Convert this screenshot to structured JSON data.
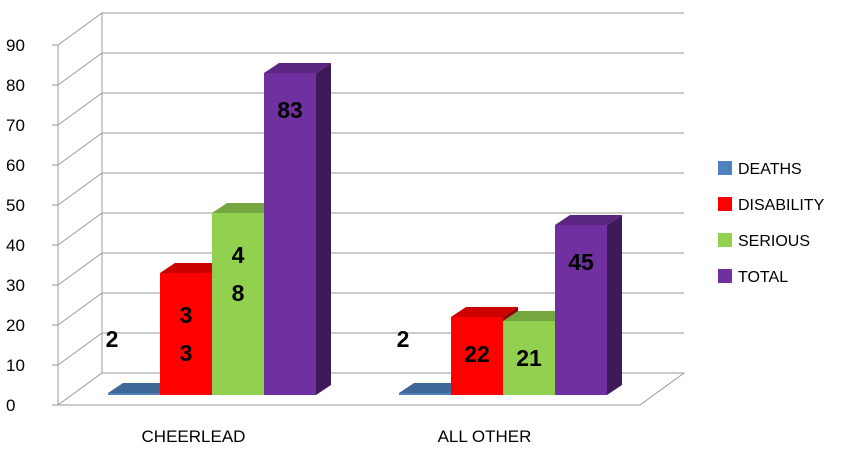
{
  "chart_data": {
    "type": "bar",
    "style": "3d-clustered-column",
    "categories": [
      "CHEERLEAD",
      "ALL OTHER"
    ],
    "series": [
      {
        "name": "DEATHS",
        "color": "#4f81bd",
        "values": [
          2,
          2
        ]
      },
      {
        "name": "DISABILITY",
        "color": "#ff0000",
        "values": [
          33,
          22
        ]
      },
      {
        "name": "SERIOUS",
        "color": "#92d050",
        "values": [
          48,
          21
        ]
      },
      {
        "name": "TOTAL",
        "color": "#7030a0",
        "values": [
          83,
          45
        ]
      }
    ],
    "data_labels": [
      [
        "2",
        "3\n3",
        "4\n8",
        "83"
      ],
      [
        "2",
        "22",
        "21",
        "45"
      ]
    ],
    "yticks": [
      0,
      10,
      20,
      30,
      40,
      50,
      60,
      70,
      80,
      90
    ],
    "ylim": [
      0,
      90
    ],
    "grid": true,
    "legend": "right"
  }
}
